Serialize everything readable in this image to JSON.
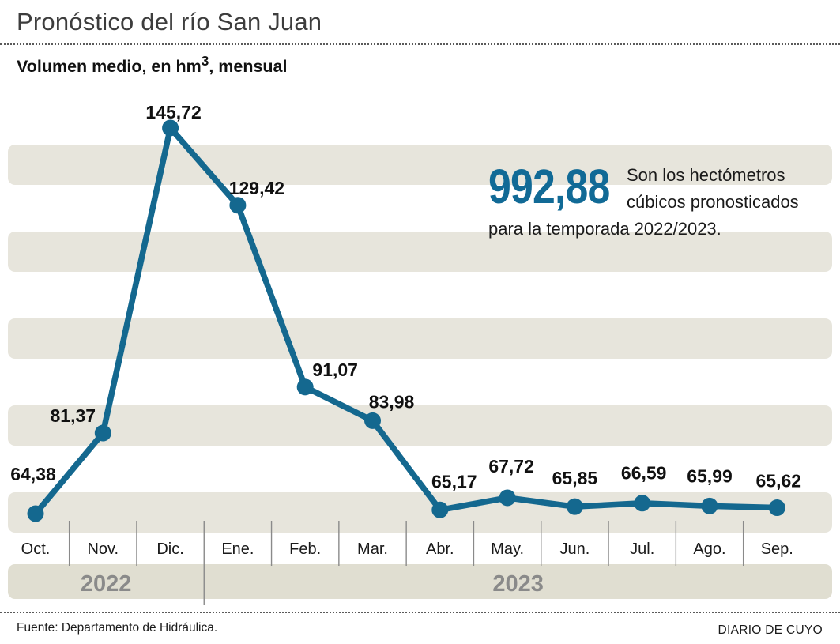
{
  "header": {
    "title": "Pronóstico del río San Juan",
    "subtitle_prefix": "Volumen medio, en hm",
    "subtitle_sup": "3",
    "subtitle_suffix": ", mensual"
  },
  "callout": {
    "value": "992,88",
    "text": "Son los hectómetros cúbicos pronosticados para la temporada 2022/2023."
  },
  "chart_data": {
    "type": "line",
    "title": "Pronóstico del río San Juan",
    "ylabel": "Volumen medio, en hm3, mensual",
    "categories": [
      "Oct.",
      "Nov.",
      "Dic.",
      "Ene.",
      "Feb.",
      "Mar.",
      "Abr.",
      "May.",
      "Jun.",
      "Jul.",
      "Ago.",
      "Sep."
    ],
    "values": [
      64.38,
      81.37,
      145.72,
      129.42,
      91.07,
      83.98,
      65.17,
      67.72,
      65.85,
      66.59,
      65.99,
      65.62
    ],
    "value_labels": [
      "64,38",
      "81,37",
      "145,72",
      "129,42",
      "91,07",
      "83,98",
      "65,17",
      "67,72",
      "65,85",
      "66,59",
      "65,99",
      "65,62"
    ],
    "year_groups": [
      {
        "label": "2022",
        "months": 3
      },
      {
        "label": "2023",
        "months": 9
      }
    ],
    "season_total": "992,88",
    "ylim": [
      60,
      150
    ],
    "grid": "horizontal-stripes",
    "legend": "none",
    "line_color": "#14688f",
    "stripe_color": "#e7e5dc",
    "year_band_color": "#e0ded1",
    "year_text_color": "#8a8a8a",
    "separator_color": "#8a8a8a",
    "label_color": "#111111"
  },
  "footer": {
    "source": "Fuente: Departamento de Hidráulica.",
    "credit": "DIARIO DE CUYO"
  }
}
